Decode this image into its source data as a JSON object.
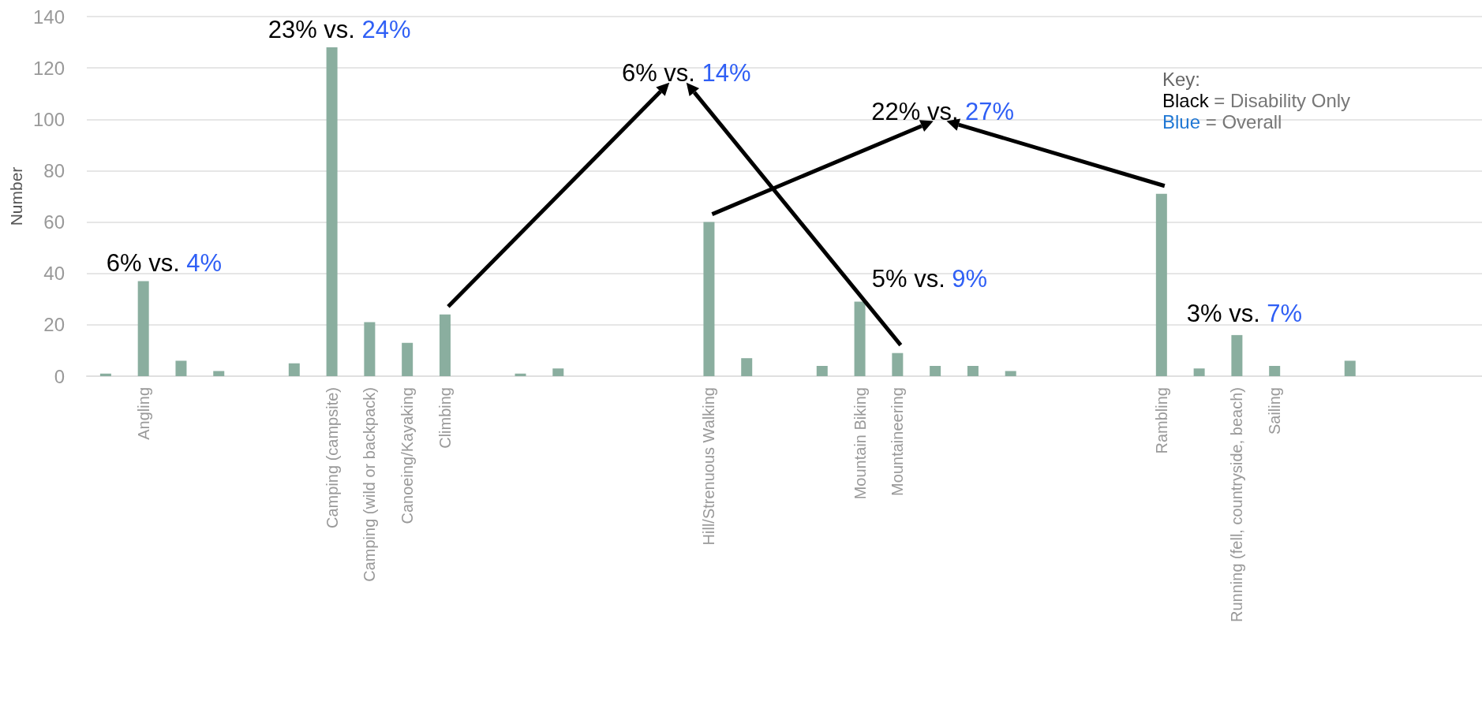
{
  "chart_data": {
    "type": "bar",
    "ylabel": "Number",
    "categories": [
      null,
      "Angling",
      null,
      null,
      null,
      null,
      "Camping (campsite)",
      "Camping (wild or backpack)",
      "Canoeing/Kayaking",
      "Climbing",
      null,
      null,
      null,
      null,
      null,
      null,
      "Hill/Strenuous Walking",
      null,
      null,
      null,
      "Mountain Biking",
      "Mountaineering",
      null,
      null,
      null,
      null,
      null,
      null,
      "Rambling",
      null,
      "Running (fell, countryside, beach)",
      "Sailing",
      null,
      null,
      null,
      null,
      null
    ],
    "values": [
      1,
      37,
      6,
      2,
      null,
      5,
      128,
      21,
      13,
      24,
      null,
      1,
      3,
      null,
      null,
      null,
      60,
      7,
      null,
      4,
      29,
      9,
      4,
      4,
      2,
      null,
      null,
      null,
      71,
      3,
      16,
      4,
      null,
      6,
      null,
      null,
      null
    ],
    "color": "#8aae9f",
    "ylim": [
      0,
      140
    ],
    "yticks": [
      0,
      20,
      40,
      60,
      80,
      100,
      120,
      140
    ],
    "grid": "y",
    "annotations": [
      "6% vs. 4%",
      "23% vs. 24%",
      "6% vs. 14%",
      "22% vs. 27%",
      "5% vs. 9%",
      "3% vs. 7%",
      "Key:",
      "Black = Disability Only",
      "Blue = Overall"
    ]
  }
}
